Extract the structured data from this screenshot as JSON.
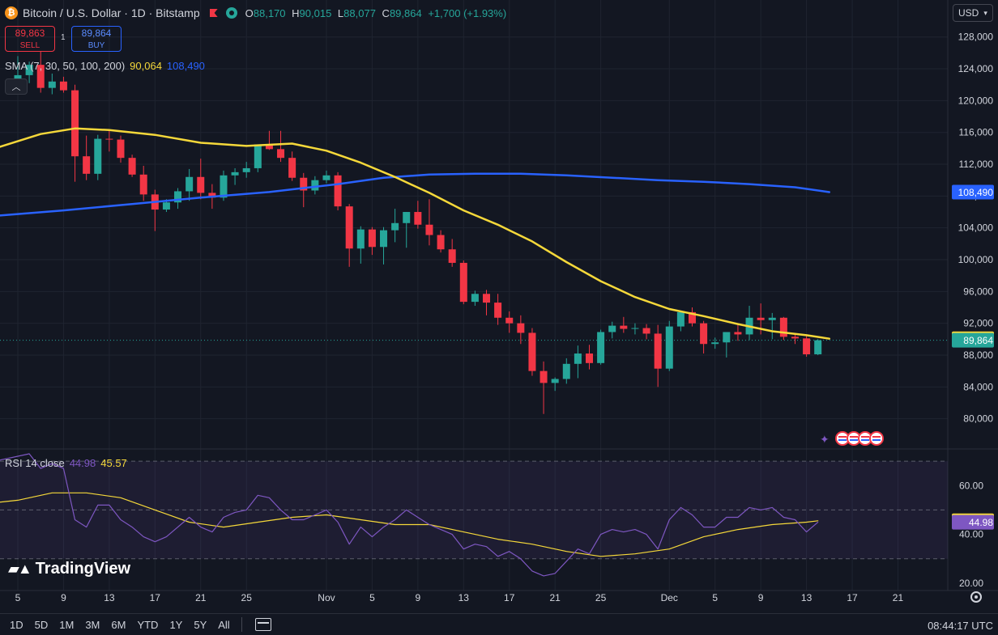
{
  "header": {
    "symbol": "Bitcoin / U.S. Dollar · 1D · Bitstamp",
    "coin_icon_letter": "₿",
    "ohlc": {
      "o_label": "O",
      "o": "88,170",
      "h_label": "H",
      "h": "90,015",
      "l_label": "L",
      "l": "88,077",
      "c_label": "C",
      "c": "89,864",
      "change": "+1,700 (+1.93%)"
    }
  },
  "trade": {
    "sell_price": "89,863",
    "sell_label": "SELL",
    "spread": "1",
    "buy_price": "89,864",
    "buy_label": "BUY"
  },
  "indicators": {
    "sma_label": "SMA (7, 30, 50, 100, 200)",
    "sma_fast_value": "90,064",
    "sma_slow_value": "108,490",
    "rsi_label": "RSI 14 close",
    "rsi_value": "44.98",
    "rsi_ma_value": "45.57"
  },
  "currency": "USD",
  "logo": "TradingView",
  "toolbar": {
    "ranges": [
      "1D",
      "5D",
      "1M",
      "3M",
      "6M",
      "YTD",
      "1Y",
      "5Y",
      "All"
    ]
  },
  "clock": "08:44:17 UTC",
  "colors": {
    "up": "#26a69a",
    "down": "#f23645",
    "sma_fast": "#f5d83a",
    "sma_slow": "#2962ff",
    "rsi": "#7e57c2",
    "background": "#131722"
  },
  "chart_data": {
    "type": "candlestick",
    "price_axis_ticks": [
      "128,000",
      "124,000",
      "120,000",
      "116,000",
      "112,000",
      "108,000",
      "104,000",
      "100,000",
      "96,000",
      "92,000",
      "88,000",
      "84,000",
      "80,000"
    ],
    "price_ylim": [
      76200,
      129600
    ],
    "time_axis_ticks": [
      {
        "label": "5",
        "idx": 0
      },
      {
        "label": "9",
        "idx": 4
      },
      {
        "label": "13",
        "idx": 8
      },
      {
        "label": "17",
        "idx": 12
      },
      {
        "label": "21",
        "idx": 16
      },
      {
        "label": "25",
        "idx": 20
      },
      {
        "label": "Nov",
        "idx": 27
      },
      {
        "label": "5",
        "idx": 31
      },
      {
        "label": "9",
        "idx": 35
      },
      {
        "label": "13",
        "idx": 39
      },
      {
        "label": "17",
        "idx": 43
      },
      {
        "label": "21",
        "idx": 47
      },
      {
        "label": "25",
        "idx": 51
      },
      {
        "label": "Dec",
        "idx": 57
      },
      {
        "label": "5",
        "idx": 61
      },
      {
        "label": "9",
        "idx": 65
      },
      {
        "label": "13",
        "idx": 69
      },
      {
        "label": "17",
        "idx": 73
      },
      {
        "label": "21",
        "idx": 77
      }
    ],
    "candles": [
      {
        "o": 122600,
        "h": 125600,
        "l": 121800,
        "c": 123200
      },
      {
        "o": 123200,
        "h": 124900,
        "l": 122200,
        "c": 124500
      },
      {
        "o": 124500,
        "h": 126200,
        "l": 121000,
        "c": 121600
      },
      {
        "o": 121600,
        "h": 123400,
        "l": 120800,
        "c": 122400
      },
      {
        "o": 122400,
        "h": 123000,
        "l": 121000,
        "c": 121300
      },
      {
        "o": 121300,
        "h": 122000,
        "l": 109800,
        "c": 113000
      },
      {
        "o": 113000,
        "h": 115600,
        "l": 110000,
        "c": 110800
      },
      {
        "o": 110800,
        "h": 115700,
        "l": 110000,
        "c": 115200
      },
      {
        "o": 115200,
        "h": 116200,
        "l": 113600,
        "c": 115100
      },
      {
        "o": 115100,
        "h": 115600,
        "l": 112200,
        "c": 112800
      },
      {
        "o": 112800,
        "h": 113200,
        "l": 110400,
        "c": 110700
      },
      {
        "o": 110700,
        "h": 111800,
        "l": 107400,
        "c": 108200
      },
      {
        "o": 108200,
        "h": 108800,
        "l": 103600,
        "c": 106300
      },
      {
        "o": 106300,
        "h": 107600,
        "l": 106000,
        "c": 107200
      },
      {
        "o": 107200,
        "h": 109000,
        "l": 106400,
        "c": 108600
      },
      {
        "o": 108600,
        "h": 111400,
        "l": 107400,
        "c": 110400
      },
      {
        "o": 110400,
        "h": 112700,
        "l": 107600,
        "c": 108400
      },
      {
        "o": 108400,
        "h": 109500,
        "l": 106400,
        "c": 107800
      },
      {
        "o": 107800,
        "h": 111200,
        "l": 107400,
        "c": 110600
      },
      {
        "o": 110600,
        "h": 111500,
        "l": 109400,
        "c": 111000
      },
      {
        "o": 111000,
        "h": 112300,
        "l": 110300,
        "c": 111500
      },
      {
        "o": 111500,
        "h": 114300,
        "l": 111000,
        "c": 114500
      },
      {
        "o": 114500,
        "h": 116200,
        "l": 113800,
        "c": 113900
      },
      {
        "o": 113900,
        "h": 116200,
        "l": 112300,
        "c": 112800
      },
      {
        "o": 112800,
        "h": 113600,
        "l": 109900,
        "c": 110300
      },
      {
        "o": 110300,
        "h": 110900,
        "l": 106600,
        "c": 108700
      },
      {
        "o": 108700,
        "h": 110500,
        "l": 108200,
        "c": 110000
      },
      {
        "o": 110000,
        "h": 111200,
        "l": 109600,
        "c": 110600
      },
      {
        "o": 110600,
        "h": 111000,
        "l": 106200,
        "c": 106700
      },
      {
        "o": 106700,
        "h": 107000,
        "l": 99100,
        "c": 101400
      },
      {
        "o": 101400,
        "h": 104200,
        "l": 99500,
        "c": 103800
      },
      {
        "o": 103800,
        "h": 104100,
        "l": 100600,
        "c": 101600
      },
      {
        "o": 101600,
        "h": 104100,
        "l": 99400,
        "c": 103700
      },
      {
        "o": 103700,
        "h": 106400,
        "l": 102200,
        "c": 104600
      },
      {
        "o": 104600,
        "h": 106000,
        "l": 101500,
        "c": 106000
      },
      {
        "o": 106000,
        "h": 107400,
        "l": 103900,
        "c": 104400
      },
      {
        "o": 104400,
        "h": 107600,
        "l": 101800,
        "c": 103100
      },
      {
        "o": 103100,
        "h": 103700,
        "l": 100900,
        "c": 101300
      },
      {
        "o": 101300,
        "h": 102600,
        "l": 99100,
        "c": 99600
      },
      {
        "o": 99600,
        "h": 99900,
        "l": 94400,
        "c": 94700
      },
      {
        "o": 94700,
        "h": 96100,
        "l": 94200,
        "c": 95700
      },
      {
        "o": 95700,
        "h": 96200,
        "l": 93000,
        "c": 94600
      },
      {
        "o": 94600,
        "h": 95700,
        "l": 91800,
        "c": 92700
      },
      {
        "o": 92700,
        "h": 93500,
        "l": 90800,
        "c": 92000
      },
      {
        "o": 92000,
        "h": 93000,
        "l": 89400,
        "c": 90800
      },
      {
        "o": 90800,
        "h": 91400,
        "l": 85400,
        "c": 86000
      },
      {
        "o": 86000,
        "h": 87200,
        "l": 80600,
        "c": 84500
      },
      {
        "o": 84500,
        "h": 85200,
        "l": 83500,
        "c": 85000
      },
      {
        "o": 85000,
        "h": 87600,
        "l": 84400,
        "c": 86900
      },
      {
        "o": 86900,
        "h": 89200,
        "l": 85100,
        "c": 88200
      },
      {
        "o": 88200,
        "h": 89300,
        "l": 86200,
        "c": 87000
      },
      {
        "o": 87000,
        "h": 91200,
        "l": 86800,
        "c": 90900
      },
      {
        "o": 90900,
        "h": 92200,
        "l": 90100,
        "c": 91700
      },
      {
        "o": 91700,
        "h": 92800,
        "l": 90800,
        "c": 91300
      },
      {
        "o": 91300,
        "h": 92000,
        "l": 90600,
        "c": 91400
      },
      {
        "o": 91400,
        "h": 91900,
        "l": 90000,
        "c": 90700
      },
      {
        "o": 90700,
        "h": 91800,
        "l": 84000,
        "c": 86300
      },
      {
        "o": 86300,
        "h": 92300,
        "l": 86000,
        "c": 91600
      },
      {
        "o": 91600,
        "h": 93400,
        "l": 91000,
        "c": 93400
      },
      {
        "o": 93400,
        "h": 94000,
        "l": 91600,
        "c": 92000
      },
      {
        "o": 92000,
        "h": 92300,
        "l": 88200,
        "c": 89400
      },
      {
        "o": 89400,
        "h": 90200,
        "l": 88800,
        "c": 89600
      },
      {
        "o": 89600,
        "h": 90800,
        "l": 87700,
        "c": 90900
      },
      {
        "o": 90900,
        "h": 91800,
        "l": 89800,
        "c": 90600
      },
      {
        "o": 90600,
        "h": 94200,
        "l": 89900,
        "c": 92700
      },
      {
        "o": 92700,
        "h": 94500,
        "l": 90600,
        "c": 92400
      },
      {
        "o": 92400,
        "h": 93300,
        "l": 90000,
        "c": 92700
      },
      {
        "o": 92700,
        "h": 92800,
        "l": 89900,
        "c": 90300
      },
      {
        "o": 90300,
        "h": 90700,
        "l": 89400,
        "c": 90100
      },
      {
        "o": 90100,
        "h": 90400,
        "l": 87800,
        "c": 88100
      },
      {
        "o": 88100,
        "h": 90000,
        "l": 88000,
        "c": 89864
      }
    ],
    "sma_fast": {
      "name": "SMA 50",
      "points": [
        {
          "idx": -2,
          "v": 114000
        },
        {
          "idx": 2,
          "v": 115800
        },
        {
          "idx": 5,
          "v": 116500
        },
        {
          "idx": 8,
          "v": 116300
        },
        {
          "idx": 12,
          "v": 115700
        },
        {
          "idx": 16,
          "v": 114700
        },
        {
          "idx": 20,
          "v": 114300
        },
        {
          "idx": 24,
          "v": 114600
        },
        {
          "idx": 27,
          "v": 113700
        },
        {
          "idx": 30,
          "v": 112200
        },
        {
          "idx": 33,
          "v": 110400
        },
        {
          "idx": 36,
          "v": 108400
        },
        {
          "idx": 39,
          "v": 106200
        },
        {
          "idx": 42,
          "v": 104400
        },
        {
          "idx": 45,
          "v": 102300
        },
        {
          "idx": 48,
          "v": 99700
        },
        {
          "idx": 51,
          "v": 97300
        },
        {
          "idx": 54,
          "v": 95300
        },
        {
          "idx": 57,
          "v": 93800
        },
        {
          "idx": 60,
          "v": 92900
        },
        {
          "idx": 63,
          "v": 91900
        },
        {
          "idx": 66,
          "v": 91000
        },
        {
          "idx": 69,
          "v": 90500
        },
        {
          "idx": 71,
          "v": 90064
        }
      ]
    },
    "sma_slow": {
      "name": "SMA 200",
      "points": [
        {
          "idx": -2,
          "v": 105500
        },
        {
          "idx": 4,
          "v": 106200
        },
        {
          "idx": 10,
          "v": 107000
        },
        {
          "idx": 16,
          "v": 107800
        },
        {
          "idx": 22,
          "v": 108500
        },
        {
          "idx": 28,
          "v": 109500
        },
        {
          "idx": 32,
          "v": 110300
        },
        {
          "idx": 36,
          "v": 110700
        },
        {
          "idx": 40,
          "v": 110800
        },
        {
          "idx": 44,
          "v": 110800
        },
        {
          "idx": 48,
          "v": 110600
        },
        {
          "idx": 52,
          "v": 110300
        },
        {
          "idx": 56,
          "v": 110000
        },
        {
          "idx": 60,
          "v": 109800
        },
        {
          "idx": 64,
          "v": 109500
        },
        {
          "idx": 68,
          "v": 109100
        },
        {
          "idx": 71,
          "v": 108490
        }
      ]
    },
    "rsi_axis_ticks": [
      "60.00",
      "40.00",
      "20.00"
    ],
    "rsi_ylim": [
      17,
      75
    ],
    "rsi_bands": {
      "upper": 70,
      "middle": 50,
      "lower": 30
    },
    "rsi": [
      {
        "idx": -2,
        "v": 70
      },
      {
        "idx": 1,
        "v": 73
      },
      {
        "idx": 2,
        "v": 67
      },
      {
        "idx": 3,
        "v": 69
      },
      {
        "idx": 4,
        "v": 67
      },
      {
        "idx": 5,
        "v": 46
      },
      {
        "idx": 6,
        "v": 43
      },
      {
        "idx": 7,
        "v": 52
      },
      {
        "idx": 8,
        "v": 52
      },
      {
        "idx": 9,
        "v": 46
      },
      {
        "idx": 10,
        "v": 43
      },
      {
        "idx": 11,
        "v": 39
      },
      {
        "idx": 12,
        "v": 37
      },
      {
        "idx": 13,
        "v": 39
      },
      {
        "idx": 14,
        "v": 43
      },
      {
        "idx": 15,
        "v": 47
      },
      {
        "idx": 16,
        "v": 43
      },
      {
        "idx": 17,
        "v": 41
      },
      {
        "idx": 18,
        "v": 47
      },
      {
        "idx": 19,
        "v": 49
      },
      {
        "idx": 20,
        "v": 50
      },
      {
        "idx": 21,
        "v": 56
      },
      {
        "idx": 22,
        "v": 55
      },
      {
        "idx": 23,
        "v": 50
      },
      {
        "idx": 24,
        "v": 46
      },
      {
        "idx": 25,
        "v": 46
      },
      {
        "idx": 26,
        "v": 48
      },
      {
        "idx": 27,
        "v": 50
      },
      {
        "idx": 28,
        "v": 45
      },
      {
        "idx": 29,
        "v": 36
      },
      {
        "idx": 30,
        "v": 43
      },
      {
        "idx": 31,
        "v": 39
      },
      {
        "idx": 32,
        "v": 43
      },
      {
        "idx": 33,
        "v": 46
      },
      {
        "idx": 34,
        "v": 50
      },
      {
        "idx": 35,
        "v": 47
      },
      {
        "idx": 36,
        "v": 44
      },
      {
        "idx": 37,
        "v": 42
      },
      {
        "idx": 38,
        "v": 40
      },
      {
        "idx": 39,
        "v": 34
      },
      {
        "idx": 40,
        "v": 36
      },
      {
        "idx": 41,
        "v": 35
      },
      {
        "idx": 42,
        "v": 31
      },
      {
        "idx": 43,
        "v": 33
      },
      {
        "idx": 44,
        "v": 30
      },
      {
        "idx": 45,
        "v": 25
      },
      {
        "idx": 46,
        "v": 23
      },
      {
        "idx": 47,
        "v": 24
      },
      {
        "idx": 48,
        "v": 29
      },
      {
        "idx": 49,
        "v": 34
      },
      {
        "idx": 50,
        "v": 32
      },
      {
        "idx": 51,
        "v": 40
      },
      {
        "idx": 52,
        "v": 42
      },
      {
        "idx": 53,
        "v": 41
      },
      {
        "idx": 54,
        "v": 42
      },
      {
        "idx": 55,
        "v": 40
      },
      {
        "idx": 56,
        "v": 34
      },
      {
        "idx": 57,
        "v": 46
      },
      {
        "idx": 58,
        "v": 51
      },
      {
        "idx": 59,
        "v": 48
      },
      {
        "idx": 60,
        "v": 43
      },
      {
        "idx": 61,
        "v": 43
      },
      {
        "idx": 62,
        "v": 47
      },
      {
        "idx": 63,
        "v": 47
      },
      {
        "idx": 64,
        "v": 51
      },
      {
        "idx": 65,
        "v": 50
      },
      {
        "idx": 66,
        "v": 51
      },
      {
        "idx": 67,
        "v": 47
      },
      {
        "idx": 68,
        "v": 46
      },
      {
        "idx": 69,
        "v": 41
      },
      {
        "idx": 70,
        "v": 44.98
      }
    ],
    "rsi_ma": [
      {
        "idx": -2,
        "v": 53
      },
      {
        "idx": 0,
        "v": 54
      },
      {
        "idx": 3,
        "v": 57
      },
      {
        "idx": 6,
        "v": 57
      },
      {
        "idx": 9,
        "v": 55
      },
      {
        "idx": 12,
        "v": 50
      },
      {
        "idx": 15,
        "v": 45
      },
      {
        "idx": 18,
        "v": 43
      },
      {
        "idx": 21,
        "v": 45
      },
      {
        "idx": 24,
        "v": 47
      },
      {
        "idx": 27,
        "v": 48
      },
      {
        "idx": 30,
        "v": 46
      },
      {
        "idx": 33,
        "v": 44
      },
      {
        "idx": 36,
        "v": 44
      },
      {
        "idx": 39,
        "v": 41
      },
      {
        "idx": 42,
        "v": 38
      },
      {
        "idx": 45,
        "v": 36
      },
      {
        "idx": 48,
        "v": 33
      },
      {
        "idx": 51,
        "v": 31
      },
      {
        "idx": 54,
        "v": 32
      },
      {
        "idx": 57,
        "v": 34
      },
      {
        "idx": 60,
        "v": 39
      },
      {
        "idx": 63,
        "v": 42
      },
      {
        "idx": 66,
        "v": 44
      },
      {
        "idx": 69,
        "v": 45
      },
      {
        "idx": 70,
        "v": 45.57
      }
    ]
  }
}
